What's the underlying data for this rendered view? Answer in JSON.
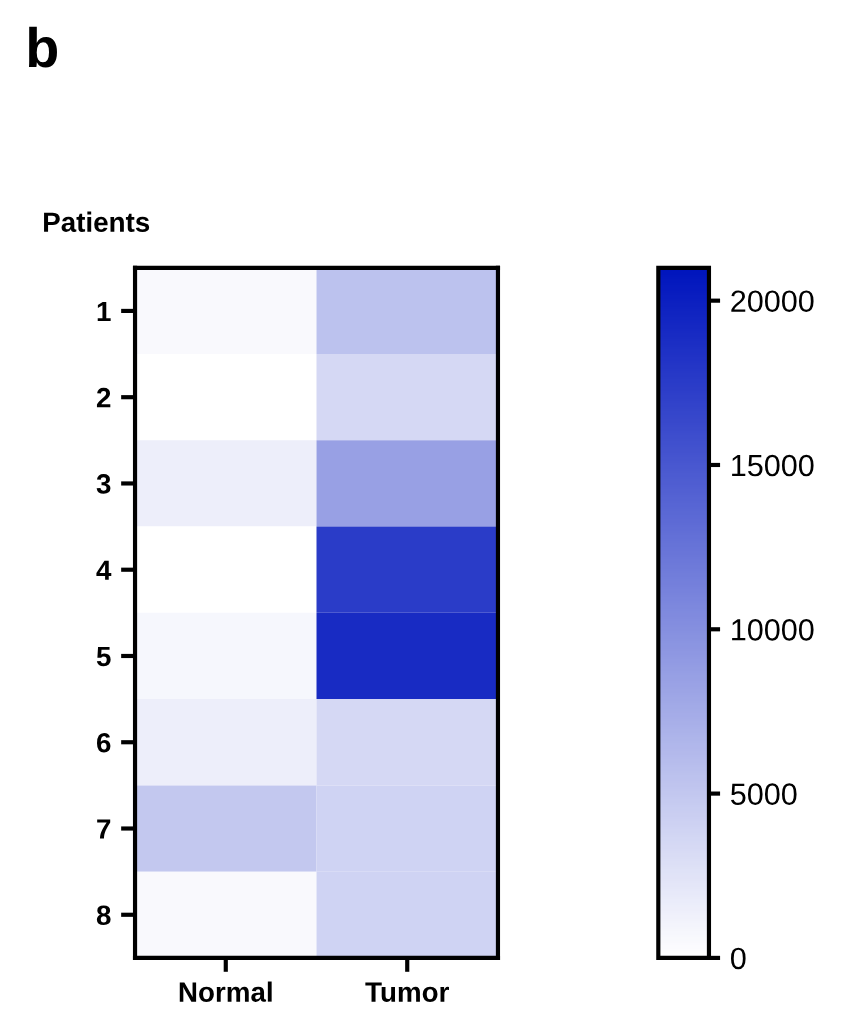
{
  "chart_data": {
    "type": "heatmap",
    "title": "b",
    "ylabel": "Patients",
    "categories": [
      "Normal",
      "Tumor"
    ],
    "y_categories": [
      "1",
      "2",
      "3",
      "4",
      "5",
      "6",
      "7",
      "8"
    ],
    "cells": [
      [
        500,
        5500
      ],
      [
        0,
        3500
      ],
      [
        1500,
        8500
      ],
      [
        0,
        17500
      ],
      [
        800,
        19000
      ],
      [
        1500,
        3500
      ],
      [
        5000,
        4000
      ],
      [
        500,
        4000
      ]
    ],
    "colors": [
      "#ffffff",
      "#0015bd"
    ],
    "clim": [
      0,
      21000
    ],
    "cticks": [
      0,
      5000,
      10000,
      15000,
      20000
    ]
  }
}
